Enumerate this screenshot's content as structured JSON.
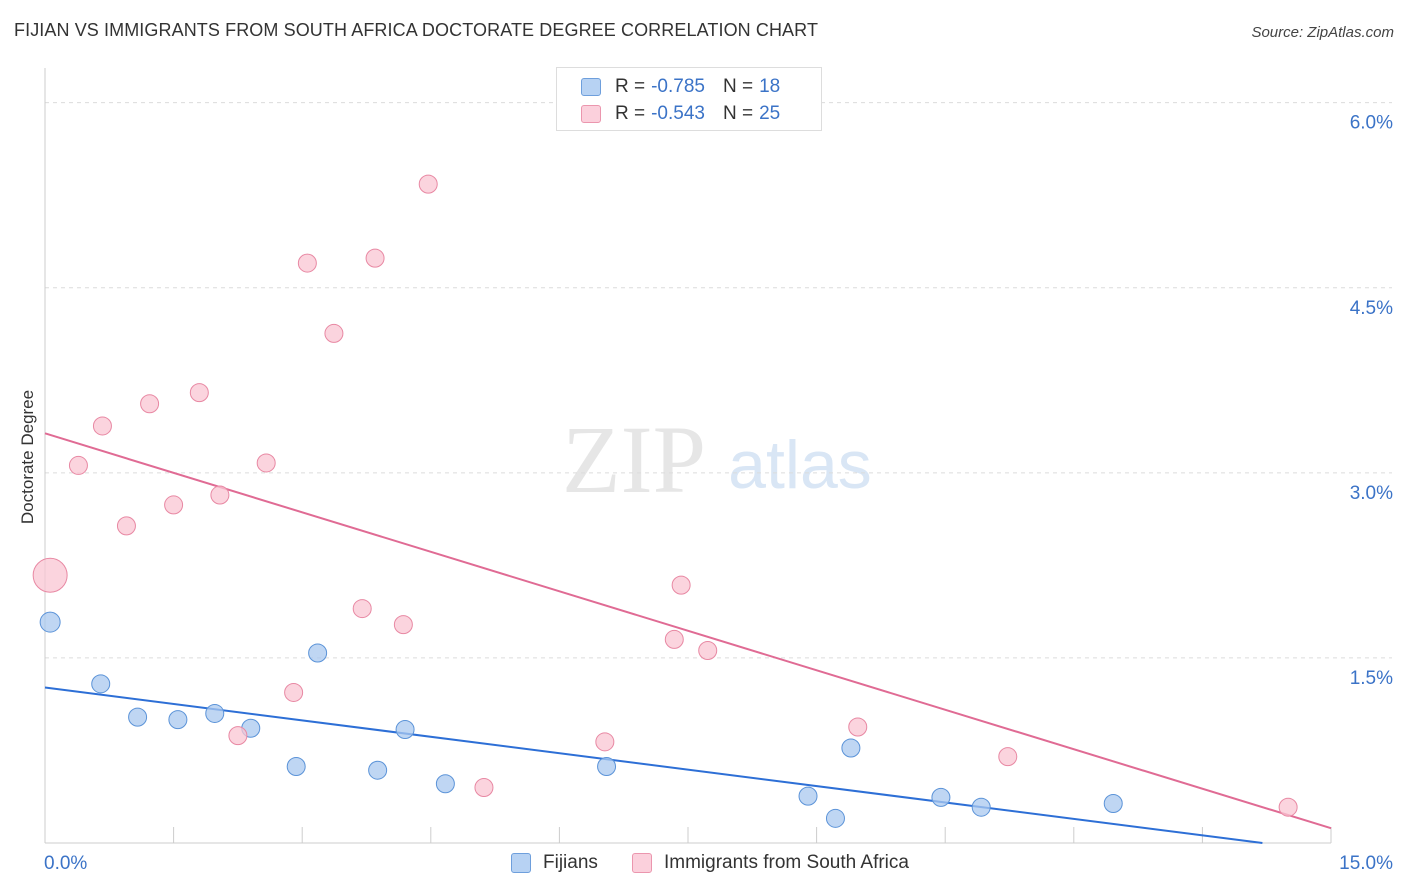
{
  "header": {
    "title": "FIJIAN VS IMMIGRANTS FROM SOUTH AFRICA DOCTORATE DEGREE CORRELATION CHART",
    "source": "Source: ZipAtlas.com"
  },
  "watermark": {
    "zip": "ZIP",
    "atlas": "atlas"
  },
  "legend": {
    "rows": [
      {
        "r_label": "R =",
        "r_value": "-0.785",
        "n_label": "N =",
        "n_value": "18"
      },
      {
        "r_label": "R =",
        "r_value": "-0.543",
        "n_label": "N =",
        "n_value": "25"
      }
    ]
  },
  "bottom_legend": {
    "fijians": "Fijians",
    "immigrants": "Immigrants from South Africa"
  },
  "colors": {
    "fijians_fill": "#a9c8ef",
    "fijians_stroke": "#5b93d8",
    "fijians_line": "#2d6fd6",
    "immigrants_fill": "#f9c6d3",
    "immigrants_stroke": "#e888a3",
    "immigrants_line": "#e06b94",
    "axis_text": "#3b73c7"
  },
  "chart_data": {
    "type": "scatter",
    "title": "FIJIAN VS IMMIGRANTS FROM SOUTH AFRICA DOCTORATE DEGREE CORRELATION CHART",
    "xlabel": "",
    "ylabel": "Doctorate Degree",
    "xlim": [
      0,
      15
    ],
    "ylim": [
      0,
      6.2
    ],
    "x_tick_labels": [
      "0.0%",
      "15.0%"
    ],
    "y_ticks": [
      1.5,
      3.0,
      4.5,
      6.0
    ],
    "y_tick_labels": [
      "1.5%",
      "3.0%",
      "4.5%",
      "6.0%"
    ],
    "grid": true,
    "series": [
      {
        "name": "Fijians",
        "r": -0.785,
        "n": 18,
        "points": [
          {
            "x": 0.06,
            "y": 1.79,
            "size": 10
          },
          {
            "x": 0.65,
            "y": 1.29,
            "size": 9
          },
          {
            "x": 1.08,
            "y": 1.02,
            "size": 9
          },
          {
            "x": 1.55,
            "y": 1.0,
            "size": 9
          },
          {
            "x": 1.98,
            "y": 1.05,
            "size": 9
          },
          {
            "x": 2.4,
            "y": 0.93,
            "size": 9
          },
          {
            "x": 2.93,
            "y": 0.62,
            "size": 9
          },
          {
            "x": 3.18,
            "y": 1.54,
            "size": 9
          },
          {
            "x": 3.88,
            "y": 0.59,
            "size": 9
          },
          {
            "x": 4.2,
            "y": 0.92,
            "size": 9
          },
          {
            "x": 4.67,
            "y": 0.48,
            "size": 9
          },
          {
            "x": 6.55,
            "y": 0.62,
            "size": 9
          },
          {
            "x": 8.9,
            "y": 0.38,
            "size": 9
          },
          {
            "x": 9.22,
            "y": 0.2,
            "size": 9
          },
          {
            "x": 9.4,
            "y": 0.77,
            "size": 9
          },
          {
            "x": 10.45,
            "y": 0.37,
            "size": 9
          },
          {
            "x": 10.92,
            "y": 0.29,
            "size": 9
          },
          {
            "x": 12.46,
            "y": 0.32,
            "size": 9
          }
        ],
        "trend": {
          "x": [
            0,
            14.2
          ],
          "y": [
            1.26,
            0.0
          ]
        }
      },
      {
        "name": "Immigrants from South Africa",
        "r": -0.543,
        "n": 25,
        "points": [
          {
            "x": 0.06,
            "y": 2.17,
            "size": 17
          },
          {
            "x": 0.39,
            "y": 3.06,
            "size": 9
          },
          {
            "x": 0.67,
            "y": 3.38,
            "size": 9
          },
          {
            "x": 0.95,
            "y": 2.57,
            "size": 9
          },
          {
            "x": 1.22,
            "y": 3.56,
            "size": 9
          },
          {
            "x": 1.5,
            "y": 2.74,
            "size": 9
          },
          {
            "x": 1.8,
            "y": 3.65,
            "size": 9
          },
          {
            "x": 2.04,
            "y": 2.82,
            "size": 9
          },
          {
            "x": 2.25,
            "y": 0.87,
            "size": 9
          },
          {
            "x": 2.58,
            "y": 3.08,
            "size": 9
          },
          {
            "x": 2.9,
            "y": 1.22,
            "size": 9
          },
          {
            "x": 3.06,
            "y": 4.7,
            "size": 9
          },
          {
            "x": 3.37,
            "y": 4.13,
            "size": 9
          },
          {
            "x": 3.7,
            "y": 1.9,
            "size": 9
          },
          {
            "x": 3.85,
            "y": 4.74,
            "size": 9
          },
          {
            "x": 4.18,
            "y": 1.77,
            "size": 9
          },
          {
            "x": 4.47,
            "y": 5.34,
            "size": 9
          },
          {
            "x": 5.12,
            "y": 0.45,
            "size": 9
          },
          {
            "x": 6.53,
            "y": 0.82,
            "size": 9
          },
          {
            "x": 7.34,
            "y": 1.65,
            "size": 9
          },
          {
            "x": 7.42,
            "y": 2.09,
            "size": 9
          },
          {
            "x": 7.73,
            "y": 1.56,
            "size": 9
          },
          {
            "x": 9.48,
            "y": 0.94,
            "size": 9
          },
          {
            "x": 11.23,
            "y": 0.7,
            "size": 9
          },
          {
            "x": 14.5,
            "y": 0.29,
            "size": 9
          }
        ],
        "trend": {
          "x": [
            0,
            15.0
          ],
          "y": [
            3.32,
            0.12
          ]
        }
      }
    ]
  }
}
